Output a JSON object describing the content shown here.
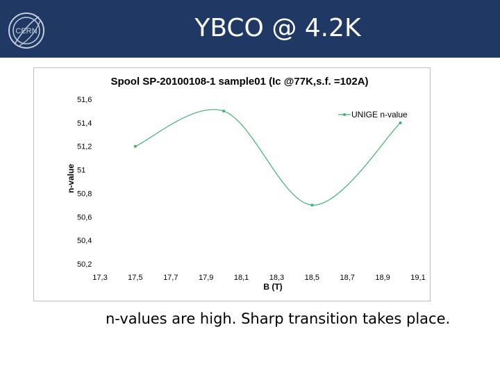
{
  "header": {
    "title": "YBCO @ 4.2K",
    "logo_text": "CERN",
    "background_color": "#1f3864"
  },
  "chart_data": {
    "type": "line",
    "title": "Spool SP-20100108-1 sample01 (Ic @77K,s.f. =102A)",
    "xlabel": "B (T)",
    "ylabel": "n-value",
    "xlim": [
      17.3,
      19.1
    ],
    "ylim": [
      50.2,
      51.6
    ],
    "x_ticks": [
      "17,3",
      "17,5",
      "17,7",
      "17,9",
      "18,1",
      "18,3",
      "18,5",
      "18,7",
      "18,9",
      "19,1"
    ],
    "y_ticks": [
      "51,6",
      "51,4",
      "51,2",
      "51",
      "50,8",
      "50,6",
      "50,4",
      "50,2"
    ],
    "grid": false,
    "legend_position": "top-right",
    "series": [
      {
        "name": "UNIGE n-value",
        "color": "#3cb371",
        "x": [
          17.5,
          18.0,
          18.5,
          19.0
        ],
        "y": [
          51.2,
          51.5,
          50.7,
          51.4
        ]
      }
    ]
  },
  "caption": "n-values are high. Sharp transition takes place."
}
